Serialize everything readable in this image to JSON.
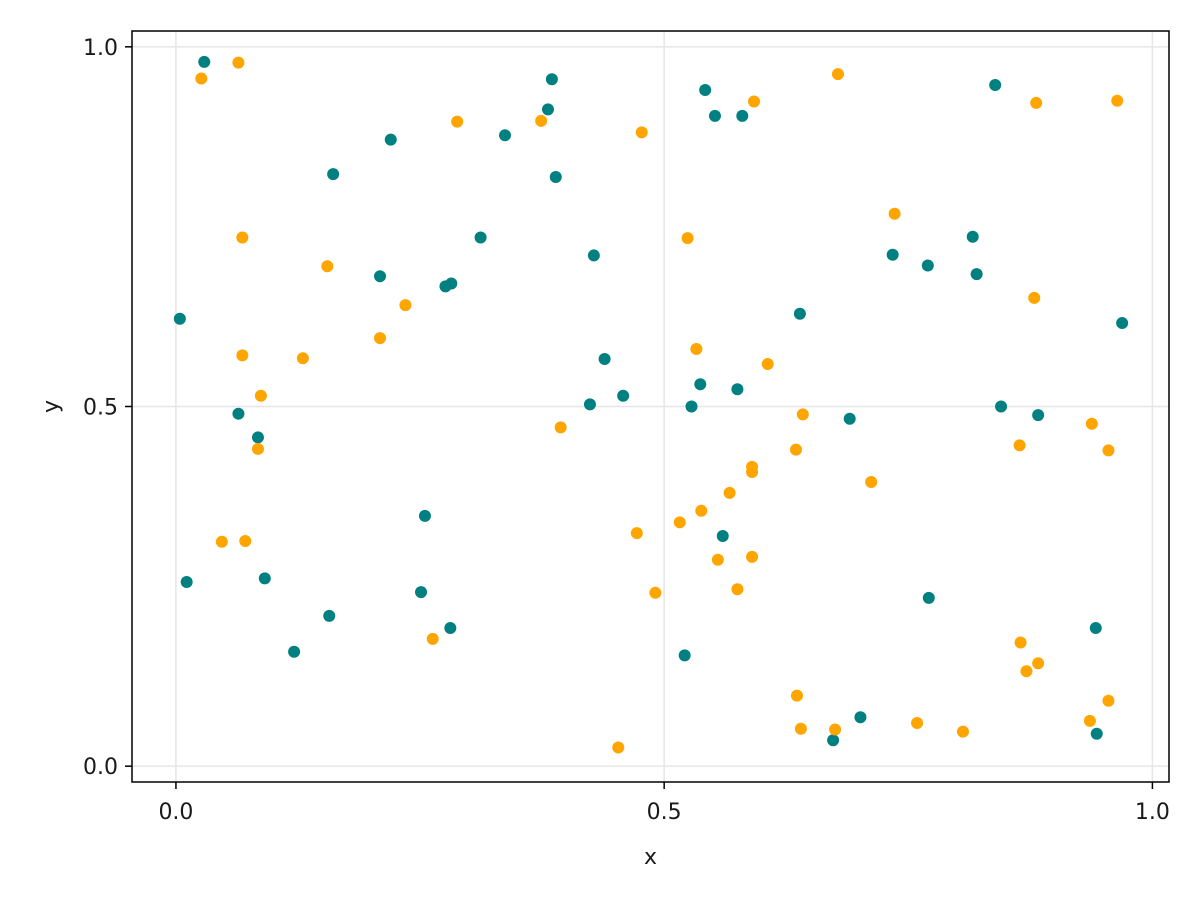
{
  "chart_data": {
    "type": "scatter",
    "title": "",
    "xlabel": "x",
    "ylabel": "y",
    "xlim": [
      -0.045,
      1.017
    ],
    "ylim": [
      -0.022,
      1.022
    ],
    "xticks": [
      {
        "value": 0.0,
        "label": "0.0"
      },
      {
        "value": 0.5,
        "label": "0.5"
      },
      {
        "value": 1.0,
        "label": "1.0"
      }
    ],
    "yticks": [
      {
        "value": 0.0,
        "label": "0.0"
      },
      {
        "value": 0.5,
        "label": "0.5"
      },
      {
        "value": 1.0,
        "label": "1.0"
      }
    ],
    "grid": true,
    "legend": "none",
    "series": [
      {
        "color": "#008080",
        "points": [
          [
            0.029,
            0.979
          ],
          [
            0.385,
            0.955
          ],
          [
            0.337,
            0.877
          ],
          [
            0.22,
            0.871
          ],
          [
            0.161,
            0.823
          ],
          [
            0.381,
            0.913
          ],
          [
            0.542,
            0.94
          ],
          [
            0.552,
            0.904
          ],
          [
            0.58,
            0.904
          ],
          [
            0.839,
            0.947
          ],
          [
            0.004,
            0.622
          ],
          [
            0.312,
            0.735
          ],
          [
            0.209,
            0.681
          ],
          [
            0.276,
            0.667
          ],
          [
            0.282,
            0.671
          ],
          [
            0.428,
            0.71
          ],
          [
            0.389,
            0.819
          ],
          [
            0.639,
            0.629
          ],
          [
            0.734,
            0.711
          ],
          [
            0.77,
            0.696
          ],
          [
            0.816,
            0.736
          ],
          [
            0.82,
            0.684
          ],
          [
            0.969,
            0.616
          ],
          [
            0.439,
            0.566
          ],
          [
            0.424,
            0.503
          ],
          [
            0.458,
            0.515
          ],
          [
            0.537,
            0.531
          ],
          [
            0.575,
            0.524
          ],
          [
            0.528,
            0.5
          ],
          [
            0.69,
            0.483
          ],
          [
            0.845,
            0.5
          ],
          [
            0.883,
            0.488
          ],
          [
            0.064,
            0.49
          ],
          [
            0.084,
            0.457
          ],
          [
            0.255,
            0.348
          ],
          [
            0.56,
            0.32
          ],
          [
            0.011,
            0.256
          ],
          [
            0.091,
            0.261
          ],
          [
            0.251,
            0.242
          ],
          [
            0.157,
            0.209
          ],
          [
            0.281,
            0.192
          ],
          [
            0.121,
            0.159
          ],
          [
            0.521,
            0.154
          ],
          [
            0.771,
            0.234
          ],
          [
            0.942,
            0.192
          ],
          [
            0.673,
            0.036
          ],
          [
            0.701,
            0.068
          ],
          [
            0.943,
            0.045
          ]
        ]
      },
      {
        "color": "#ffa500",
        "points": [
          [
            0.026,
            0.956
          ],
          [
            0.064,
            0.978
          ],
          [
            0.288,
            0.896
          ],
          [
            0.374,
            0.897
          ],
          [
            0.477,
            0.881
          ],
          [
            0.592,
            0.924
          ],
          [
            0.678,
            0.962
          ],
          [
            0.881,
            0.922
          ],
          [
            0.964,
            0.925
          ],
          [
            0.068,
            0.735
          ],
          [
            0.155,
            0.695
          ],
          [
            0.524,
            0.734
          ],
          [
            0.736,
            0.768
          ],
          [
            0.235,
            0.641
          ],
          [
            0.209,
            0.595
          ],
          [
            0.068,
            0.571
          ],
          [
            0.13,
            0.567
          ],
          [
            0.533,
            0.58
          ],
          [
            0.606,
            0.559
          ],
          [
            0.879,
            0.651
          ],
          [
            0.087,
            0.515
          ],
          [
            0.084,
            0.441
          ],
          [
            0.394,
            0.471
          ],
          [
            0.642,
            0.489
          ],
          [
            0.635,
            0.44
          ],
          [
            0.59,
            0.416
          ],
          [
            0.59,
            0.409
          ],
          [
            0.567,
            0.38
          ],
          [
            0.712,
            0.395
          ],
          [
            0.864,
            0.446
          ],
          [
            0.938,
            0.476
          ],
          [
            0.955,
            0.439
          ],
          [
            0.047,
            0.312
          ],
          [
            0.071,
            0.313
          ],
          [
            0.472,
            0.324
          ],
          [
            0.516,
            0.339
          ],
          [
            0.538,
            0.355
          ],
          [
            0.555,
            0.287
          ],
          [
            0.59,
            0.291
          ],
          [
            0.575,
            0.246
          ],
          [
            0.491,
            0.241
          ],
          [
            0.263,
            0.177
          ],
          [
            0.865,
            0.172
          ],
          [
            0.883,
            0.143
          ],
          [
            0.871,
            0.132
          ],
          [
            0.636,
            0.098
          ],
          [
            0.64,
            0.052
          ],
          [
            0.675,
            0.051
          ],
          [
            0.759,
            0.06
          ],
          [
            0.806,
            0.048
          ],
          [
            0.936,
            0.063
          ],
          [
            0.955,
            0.091
          ],
          [
            0.453,
            0.026
          ]
        ]
      }
    ]
  }
}
